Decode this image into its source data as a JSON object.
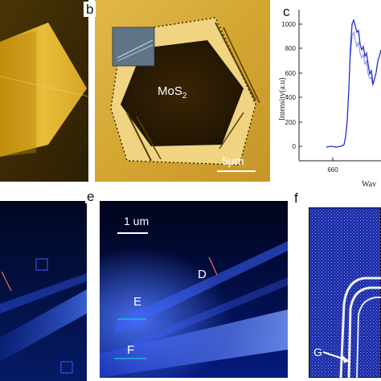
{
  "panels": {
    "b": {
      "label": "b",
      "material": "MoS",
      "material_sub": "2",
      "scalebar": "5μm"
    },
    "c": {
      "label": "c",
      "ylabel": "Intensity(a.u)",
      "xlabel": "Wav",
      "yticks": [
        "0",
        "200",
        "400",
        "600",
        "800",
        "1000"
      ],
      "xticks": [
        "660"
      ]
    },
    "e": {
      "label": "e",
      "scalebar": "1 um",
      "marker_d": "D",
      "marker_e": "E",
      "marker_f": "F"
    },
    "f": {
      "label": "f",
      "marker_g": "G"
    }
  },
  "colors": {
    "blue_dark": "#000a28",
    "blue_mid": "#1a3fd6",
    "afm_gold": "#b8860b",
    "line_blue": "#1f2fd0"
  }
}
